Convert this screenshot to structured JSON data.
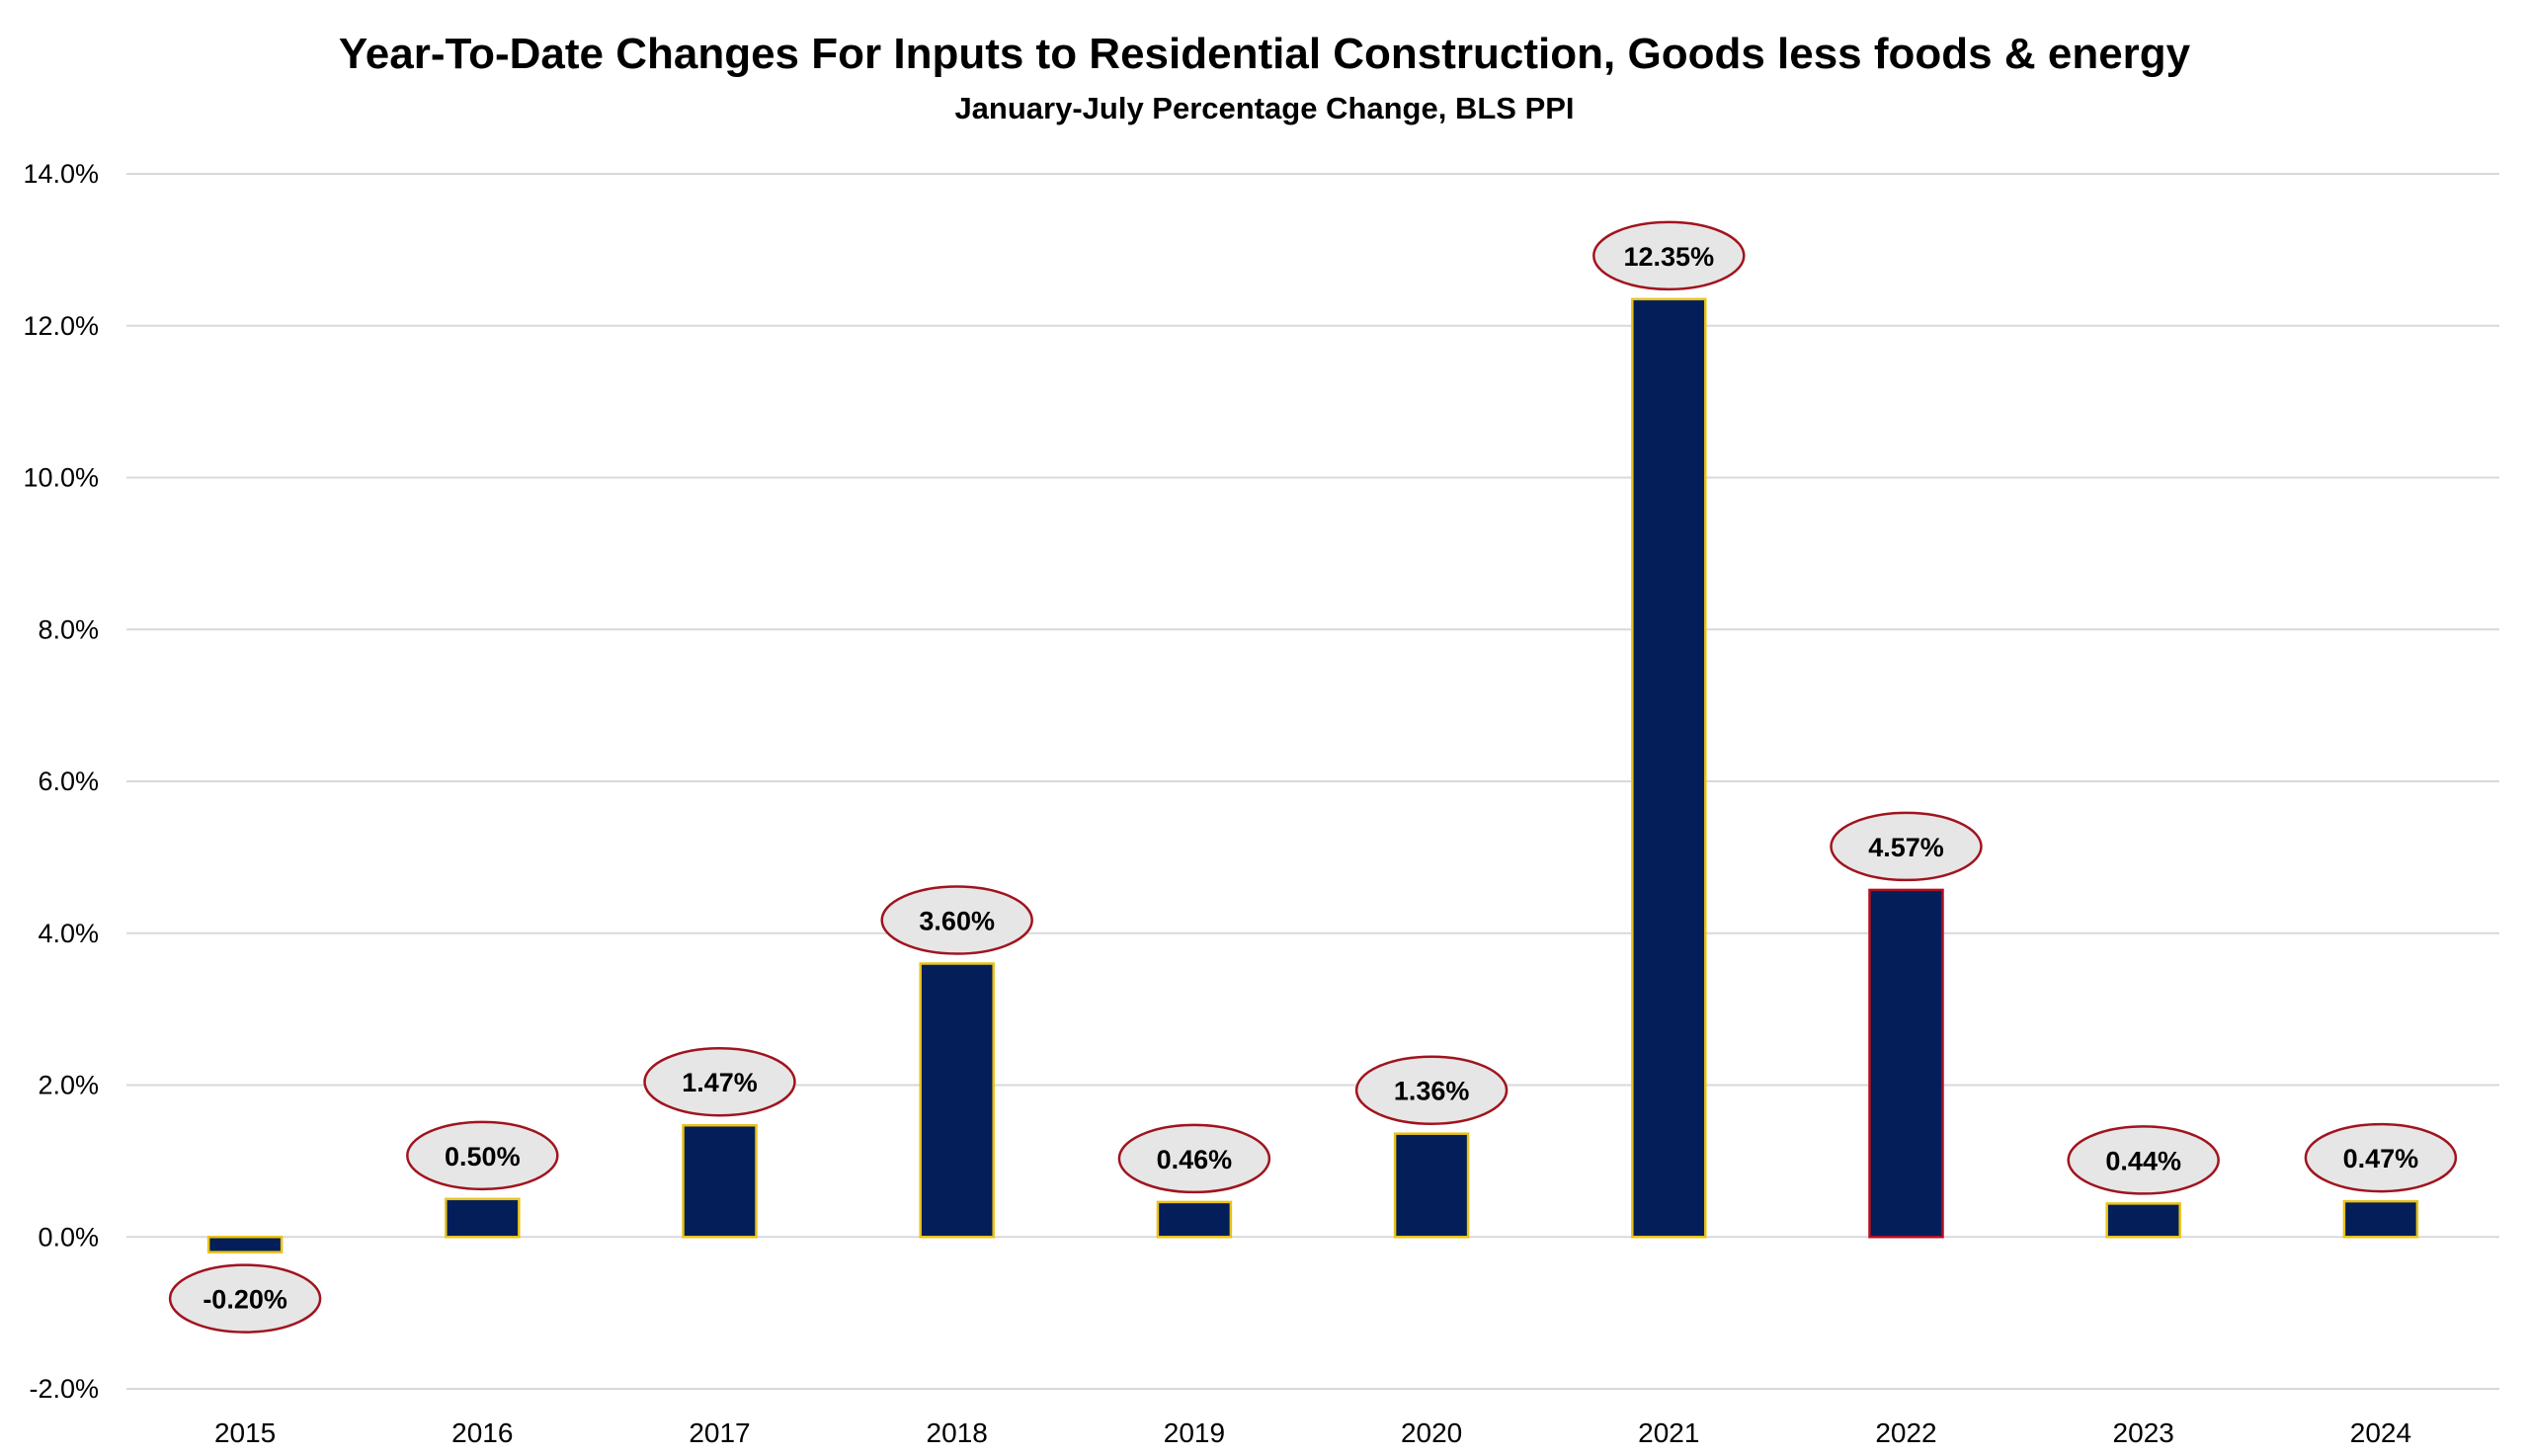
{
  "chart_data": {
    "type": "bar",
    "title": "Year-To-Date Changes For Inputs to Residential Construction, Goods less foods & energy",
    "subtitle": "January-July Percentage Change, BLS PPI",
    "xlabel": "",
    "ylabel": "",
    "categories": [
      "2015",
      "2016",
      "2017",
      "2018",
      "2019",
      "2020",
      "2021",
      "2022",
      "2023",
      "2024"
    ],
    "values": [
      -0.2,
      0.5,
      1.47,
      3.6,
      0.46,
      1.36,
      12.35,
      4.57,
      0.44,
      0.47
    ],
    "data_labels": [
      "-0.20%",
      "0.50%",
      "1.47%",
      "3.60%",
      "0.46%",
      "1.36%",
      "12.35%",
      "4.57%",
      "0.44%",
      "0.47%"
    ],
    "ylim": [
      -2,
      14
    ],
    "yticks": [
      -2,
      0,
      2,
      4,
      6,
      8,
      10,
      12,
      14
    ],
    "ytick_labels": [
      "-2.0%",
      "0.0%",
      "2.0%",
      "4.0%",
      "6.0%",
      "8.0%",
      "10.0%",
      "12.0%",
      "14.0%"
    ],
    "grid": true,
    "legend": "none",
    "colors": {
      "bar_fill": "#041E5A",
      "bar_border": "#E8C31A",
      "bar_border_2022": "#B01020",
      "label_fill": "#E6E6E6",
      "label_border": "#A0141E",
      "grid": "#D9D9D9"
    }
  }
}
